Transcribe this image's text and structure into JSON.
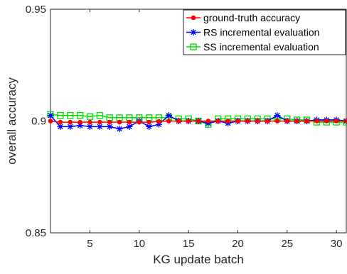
{
  "chart_data": {
    "type": "line",
    "xlabel": "KG update batch",
    "ylabel": "overall accuracy",
    "xlim": [
      1,
      31
    ],
    "ylim": [
      0.85,
      0.95
    ],
    "xticks": [
      5,
      10,
      15,
      20,
      25,
      30
    ],
    "yticks": [
      0.85,
      0.9,
      0.95
    ],
    "ytick_labels": [
      "0.85",
      "0.9",
      "0.95"
    ],
    "grid": false,
    "legend_position": "top-right",
    "x": [
      1,
      2,
      3,
      4,
      5,
      6,
      7,
      8,
      9,
      10,
      11,
      12,
      13,
      14,
      15,
      16,
      17,
      18,
      19,
      20,
      21,
      22,
      23,
      24,
      25,
      26,
      27,
      28,
      29,
      30,
      31
    ],
    "series": [
      {
        "name": "ground-truth accuracy",
        "color": "#ff0000",
        "marker": "circle",
        "values": [
          0.9,
          0.8995,
          0.8995,
          0.8995,
          0.8995,
          0.8995,
          0.8995,
          0.8995,
          0.8995,
          0.8995,
          0.8995,
          0.8998,
          0.9,
          0.9,
          0.9,
          0.9,
          0.9,
          0.9,
          0.9,
          0.9,
          0.9,
          0.9,
          0.9,
          0.9,
          0.9,
          0.9,
          0.9,
          0.9,
          0.9,
          0.9,
          0.9
        ]
      },
      {
        "name": "RS incremental evaluation",
        "color": "#0000ff",
        "marker": "star",
        "values": [
          0.9025,
          0.8975,
          0.8975,
          0.898,
          0.8975,
          0.8975,
          0.8975,
          0.8965,
          0.8975,
          0.9,
          0.8975,
          0.8985,
          0.9025,
          0.9,
          0.9,
          0.9,
          0.899,
          0.9,
          0.899,
          0.9,
          0.9,
          0.9,
          0.9,
          0.9025,
          0.9,
          0.9,
          0.9,
          0.9005,
          0.9005,
          0.9005,
          0.9
        ]
      },
      {
        "name": "SS incremental evaluation",
        "color": "#00dd00",
        "marker": "square",
        "values": [
          0.903,
          0.9025,
          0.9025,
          0.9025,
          0.902,
          0.9025,
          0.9015,
          0.9015,
          0.9015,
          0.9015,
          0.9015,
          0.9015,
          0.9015,
          0.901,
          0.901,
          0.9,
          0.8985,
          0.901,
          0.901,
          0.901,
          0.901,
          0.901,
          0.901,
          0.901,
          0.901,
          0.9005,
          0.9005,
          0.8995,
          0.8995,
          0.8995,
          0.8995
        ]
      }
    ]
  }
}
